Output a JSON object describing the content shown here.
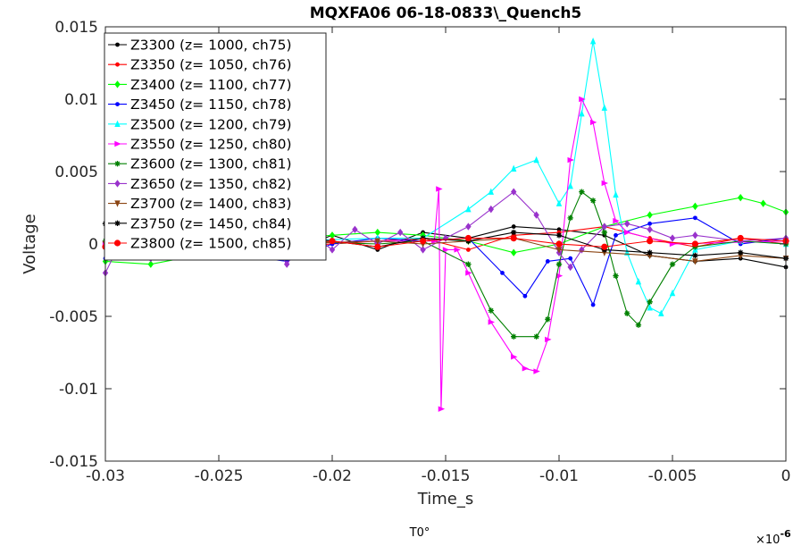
{
  "chart_data": {
    "type": "line",
    "title": "MQXFA06 06-18-0833\\_Quench5",
    "xlabel": "Time_s",
    "ylabel": "Voltage",
    "xlim": [
      -0.03,
      0
    ],
    "ylim": [
      -0.015,
      0.015
    ],
    "xticks": [
      -0.03,
      -0.025,
      -0.02,
      -0.015,
      -0.01,
      -0.005,
      0
    ],
    "xtick_labels": [
      "-0.03",
      "-0.025",
      "-0.02",
      "-0.015",
      "-0.01",
      "-0.005",
      "0"
    ],
    "yticks": [
      -0.015,
      -0.01,
      -0.005,
      0,
      0.005,
      0.01,
      0.015
    ],
    "ytick_labels": [
      "-0.015",
      "-0.01",
      "-0.005",
      "0",
      "0.005",
      "0.01",
      "0.015"
    ],
    "grid": false,
    "legend_position": "top-left",
    "below_axis_label": "T0°",
    "corner_exponent": "×10",
    "corner_exponent_power": "-6",
    "series": [
      {
        "name": "Z3300 (z= 1000, ch75)",
        "color": "#000000",
        "marker": "dot",
        "points": [
          [
            -0.03,
            0
          ],
          [
            -0.028,
            0.0008
          ],
          [
            -0.026,
            -0.0008
          ],
          [
            -0.024,
            0.0006
          ],
          [
            -0.022,
            -0.0006
          ],
          [
            -0.02,
            0.0006
          ],
          [
            -0.018,
            -0.0004
          ],
          [
            -0.016,
            0.0008
          ],
          [
            -0.014,
            0.0004
          ],
          [
            -0.012,
            0.0012
          ],
          [
            -0.01,
            0.001
          ],
          [
            -0.008,
            0.0006
          ],
          [
            -0.006,
            -0.0008
          ],
          [
            -0.004,
            -0.0012
          ],
          [
            -0.002,
            -0.001
          ],
          [
            0,
            -0.0016
          ]
        ]
      },
      {
        "name": "Z3350 (z= 1050, ch76)",
        "color": "#ff0000",
        "marker": "dot",
        "points": [
          [
            -0.03,
            0
          ],
          [
            -0.026,
            0.0002
          ],
          [
            -0.022,
            -0.0002
          ],
          [
            -0.018,
            0.0002
          ],
          [
            -0.016,
            0.0004
          ],
          [
            -0.014,
            -0.0004
          ],
          [
            -0.012,
            0.0006
          ],
          [
            -0.01,
            0.0008
          ],
          [
            -0.008,
            0.0012
          ],
          [
            -0.006,
            0.0004
          ],
          [
            -0.004,
            -0.0002
          ],
          [
            -0.002,
            0.0004
          ],
          [
            0,
            0
          ]
        ]
      },
      {
        "name": "Z3400 (z= 1100, ch77)",
        "color": "#00ff00",
        "marker": "diamond",
        "points": [
          [
            -0.03,
            -0.0012
          ],
          [
            -0.028,
            -0.0014
          ],
          [
            -0.026,
            -0.0008
          ],
          [
            -0.024,
            0
          ],
          [
            -0.022,
            0.0004
          ],
          [
            -0.02,
            0.0006
          ],
          [
            -0.018,
            0.0008
          ],
          [
            -0.016,
            0.0006
          ],
          [
            -0.014,
            0.0002
          ],
          [
            -0.012,
            -0.0006
          ],
          [
            -0.01,
            0
          ],
          [
            -0.008,
            0.0012
          ],
          [
            -0.006,
            0.002
          ],
          [
            -0.004,
            0.0026
          ],
          [
            -0.002,
            0.0032
          ],
          [
            -0.001,
            0.0028
          ],
          [
            0,
            0.0022
          ]
        ]
      },
      {
        "name": "Z3450 (z= 1150, ch78)",
        "color": "#0000ff",
        "marker": "dot",
        "points": [
          [
            -0.03,
            -0.001
          ],
          [
            -0.027,
            0.0006
          ],
          [
            -0.024,
            -0.0008
          ],
          [
            -0.022,
            -0.0012
          ],
          [
            -0.02,
            0
          ],
          [
            -0.018,
            0.0004
          ],
          [
            -0.016,
            0.0002
          ],
          [
            -0.014,
            0.0004
          ],
          [
            -0.0125,
            -0.002
          ],
          [
            -0.0115,
            -0.0036
          ],
          [
            -0.0105,
            -0.0012
          ],
          [
            -0.0095,
            -0.001
          ],
          [
            -0.0085,
            -0.0042
          ],
          [
            -0.0075,
            0.0006
          ],
          [
            -0.006,
            0.0014
          ],
          [
            -0.004,
            0.0018
          ],
          [
            -0.002,
            0
          ],
          [
            0,
            0.0004
          ]
        ]
      },
      {
        "name": "Z3500 (z= 1200, ch79)",
        "color": "#00ffff",
        "marker": "triangle",
        "points": [
          [
            -0.03,
            0
          ],
          [
            -0.026,
            0.0002
          ],
          [
            -0.022,
            0.0002
          ],
          [
            -0.018,
            0.0004
          ],
          [
            -0.016,
            0.0004
          ],
          [
            -0.014,
            0.0024
          ],
          [
            -0.013,
            0.0036
          ],
          [
            -0.012,
            0.0052
          ],
          [
            -0.011,
            0.0058
          ],
          [
            -0.01,
            0.0028
          ],
          [
            -0.0095,
            0.004
          ],
          [
            -0.009,
            0.009
          ],
          [
            -0.0085,
            0.014
          ],
          [
            -0.008,
            0.0094
          ],
          [
            -0.0075,
            0.0034
          ],
          [
            -0.007,
            -0.0006
          ],
          [
            -0.0065,
            -0.0026
          ],
          [
            -0.006,
            -0.0044
          ],
          [
            -0.0055,
            -0.0048
          ],
          [
            -0.005,
            -0.0034
          ],
          [
            -0.004,
            -0.0004
          ],
          [
            -0.002,
            0.0002
          ],
          [
            0,
            0
          ]
        ]
      },
      {
        "name": "Z3550 (z= 1250, ch80)",
        "color": "#ff00ff",
        "marker": "triangle-right",
        "points": [
          [
            -0.03,
            0
          ],
          [
            -0.026,
            0.0002
          ],
          [
            -0.022,
            0
          ],
          [
            -0.018,
            0.0002
          ],
          [
            -0.0155,
            0.0002
          ],
          [
            -0.0153,
            0.0038
          ],
          [
            -0.0152,
            -0.0114
          ],
          [
            -0.015,
            -0.0004
          ],
          [
            -0.0145,
            -0.0004
          ],
          [
            -0.014,
            -0.002
          ],
          [
            -0.013,
            -0.0054
          ],
          [
            -0.012,
            -0.0078
          ],
          [
            -0.0115,
            -0.0086
          ],
          [
            -0.011,
            -0.0088
          ],
          [
            -0.0105,
            -0.0066
          ],
          [
            -0.01,
            -0.0022
          ],
          [
            -0.0095,
            0.0058
          ],
          [
            -0.009,
            0.01
          ],
          [
            -0.0085,
            0.0084
          ],
          [
            -0.008,
            0.0042
          ],
          [
            -0.0075,
            0.0016
          ],
          [
            -0.007,
            0.0008
          ],
          [
            -0.005,
            0
          ],
          [
            0,
            0.0002
          ]
        ]
      },
      {
        "name": "Z3600 (z= 1300, ch81)",
        "color": "#008000",
        "marker": "star",
        "points": [
          [
            -0.03,
            0.0002
          ],
          [
            -0.026,
            0
          ],
          [
            -0.022,
            0.0002
          ],
          [
            -0.018,
            0
          ],
          [
            -0.016,
            0.0002
          ],
          [
            -0.014,
            -0.0014
          ],
          [
            -0.013,
            -0.0046
          ],
          [
            -0.012,
            -0.0064
          ],
          [
            -0.011,
            -0.0064
          ],
          [
            -0.0105,
            -0.0052
          ],
          [
            -0.01,
            -0.0014
          ],
          [
            -0.0095,
            0.0018
          ],
          [
            -0.009,
            0.0036
          ],
          [
            -0.0085,
            0.003
          ],
          [
            -0.008,
            0.0008
          ],
          [
            -0.0075,
            -0.0022
          ],
          [
            -0.007,
            -0.0048
          ],
          [
            -0.0065,
            -0.0056
          ],
          [
            -0.006,
            -0.004
          ],
          [
            -0.005,
            -0.0014
          ],
          [
            -0.004,
            -0.0002
          ],
          [
            -0.002,
            0.0002
          ],
          [
            0,
            0
          ]
        ]
      },
      {
        "name": "Z3650 (z= 1350, ch82)",
        "color": "#9932cc",
        "marker": "diamond",
        "points": [
          [
            -0.03,
            -0.002
          ],
          [
            -0.029,
            0.0012
          ],
          [
            -0.028,
            -0.001
          ],
          [
            -0.027,
            0.0008
          ],
          [
            -0.026,
            -0.0006
          ],
          [
            -0.025,
            0.0012
          ],
          [
            -0.024,
            -0.0002
          ],
          [
            -0.023,
            0.001
          ],
          [
            -0.022,
            -0.0014
          ],
          [
            -0.021,
            0.0008
          ],
          [
            -0.02,
            -0.0004
          ],
          [
            -0.019,
            0.001
          ],
          [
            -0.018,
            0
          ],
          [
            -0.017,
            0.0008
          ],
          [
            -0.016,
            -0.0004
          ],
          [
            -0.015,
            0.0004
          ],
          [
            -0.014,
            0.0012
          ],
          [
            -0.013,
            0.0024
          ],
          [
            -0.012,
            0.0036
          ],
          [
            -0.011,
            0.002
          ],
          [
            -0.01,
            -0.0006
          ],
          [
            -0.0095,
            -0.0016
          ],
          [
            -0.009,
            -0.0004
          ],
          [
            -0.008,
            0.0012
          ],
          [
            -0.007,
            0.0014
          ],
          [
            -0.006,
            0.001
          ],
          [
            -0.005,
            0.0004
          ],
          [
            -0.004,
            0.0006
          ],
          [
            -0.002,
            0.0002
          ],
          [
            0,
            0.0004
          ]
        ]
      },
      {
        "name": "Z3700 (z= 1400, ch83)",
        "color": "#8b4513",
        "marker": "triangle-down",
        "points": [
          [
            -0.03,
            0
          ],
          [
            -0.026,
            0.0002
          ],
          [
            -0.022,
            0
          ],
          [
            -0.018,
            0.0002
          ],
          [
            -0.016,
            0
          ],
          [
            -0.014,
            0.0002
          ],
          [
            -0.012,
            0.0004
          ],
          [
            -0.01,
            -0.0004
          ],
          [
            -0.008,
            -0.0006
          ],
          [
            -0.006,
            -0.0008
          ],
          [
            -0.004,
            -0.0012
          ],
          [
            -0.002,
            -0.0008
          ],
          [
            0,
            -0.001
          ]
        ]
      },
      {
        "name": "Z3750 (z= 1450, ch84)",
        "color": "#000000",
        "marker": "star",
        "points": [
          [
            -0.03,
            0.0014
          ],
          [
            -0.029,
            -0.0002
          ],
          [
            -0.028,
            0.0006
          ],
          [
            -0.026,
            0.0004
          ],
          [
            -0.024,
            -0.0004
          ],
          [
            -0.022,
            0.0006
          ],
          [
            -0.02,
            0.0002
          ],
          [
            -0.018,
            -0.0002
          ],
          [
            -0.016,
            0.0004
          ],
          [
            -0.014,
            0.0002
          ],
          [
            -0.012,
            0.0008
          ],
          [
            -0.01,
            0.0006
          ],
          [
            -0.008,
            -0.0004
          ],
          [
            -0.006,
            -0.0006
          ],
          [
            -0.004,
            -0.0008
          ],
          [
            -0.002,
            -0.0006
          ],
          [
            0,
            -0.001
          ]
        ]
      },
      {
        "name": "Z3800 (z= 1500, ch85)",
        "color": "#ff0000",
        "marker": "circle",
        "points": [
          [
            -0.03,
            -0.0002
          ],
          [
            -0.028,
            0
          ],
          [
            -0.026,
            -0.0002
          ],
          [
            -0.024,
            0.0002
          ],
          [
            -0.022,
            0
          ],
          [
            -0.02,
            0.0002
          ],
          [
            -0.018,
            -0.0002
          ],
          [
            -0.016,
            0.0002
          ],
          [
            -0.014,
            0.0004
          ],
          [
            -0.012,
            0.0004
          ],
          [
            -0.01,
            0
          ],
          [
            -0.008,
            -0.0002
          ],
          [
            -0.006,
            0.0002
          ],
          [
            -0.004,
            0
          ],
          [
            -0.002,
            0.0004
          ],
          [
            0,
            0.0002
          ]
        ]
      }
    ]
  }
}
